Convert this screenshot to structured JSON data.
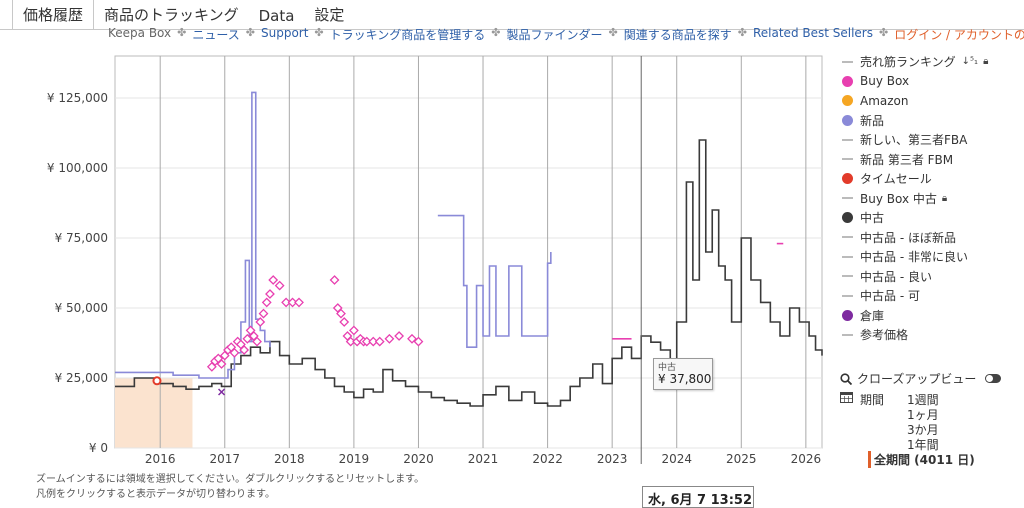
{
  "tabs": [
    {
      "label": "価格履歴",
      "active": true
    },
    {
      "label": "商品のトラッキング",
      "active": false
    },
    {
      "label": "Data",
      "active": false
    },
    {
      "label": "設定",
      "active": false
    }
  ],
  "subnav": {
    "items": [
      "Keepa Box",
      "ニュース",
      "Support",
      "トラッキング商品を管理する",
      "製品ファインダー",
      "関連する商品を探す",
      "Related Best Sellers",
      "ログイン / アカウントの登録"
    ],
    "separator": "✤"
  },
  "legend": [
    {
      "label": "売れ筋ランキング",
      "color": "#bbbbbb",
      "style": "line",
      "lock": true,
      "sort": true
    },
    {
      "label": "Buy Box",
      "color": "#e83fb0",
      "style": "dot"
    },
    {
      "label": "Amazon",
      "color": "#f5a623",
      "style": "dot"
    },
    {
      "label": "新品",
      "color": "#8a8ad8",
      "style": "dot"
    },
    {
      "label": "新しい、第三者FBA",
      "color": "#bbbbbb",
      "style": "line"
    },
    {
      "label": "新品 第三者 FBM",
      "color": "#bbbbbb",
      "style": "line"
    },
    {
      "label": "タイムセール",
      "color": "#e23b2a",
      "style": "dot"
    },
    {
      "label": "Buy Box 中古",
      "color": "#bbbbbb",
      "style": "line",
      "lock": true
    },
    {
      "label": "中古",
      "color": "#3a3a3a",
      "style": "dot"
    },
    {
      "label": "中古品 - ほぼ新品",
      "color": "#bbbbbb",
      "style": "line"
    },
    {
      "label": "中古品 - 非常に良い",
      "color": "#bbbbbb",
      "style": "line"
    },
    {
      "label": "中古品 - 良い",
      "color": "#bbbbbb",
      "style": "line"
    },
    {
      "label": "中古品 - 可",
      "color": "#bbbbbb",
      "style": "line"
    },
    {
      "label": "倉庫",
      "color": "#7e2aa0",
      "style": "dot"
    },
    {
      "label": "参考価格",
      "color": "#bbbbbb",
      "style": "line"
    }
  ],
  "closeup": {
    "label": "クローズアップビュー"
  },
  "period": {
    "label": "期間",
    "ranges": [
      "1週間",
      "1ヶ月",
      "3か月",
      "1年間",
      "全期間 (4011 日)"
    ],
    "selected": 4
  },
  "notes": [
    "ズームインするには領域を選択してください。ダブルクリックするとリセットします。",
    "凡例をクリックすると表示データが切り替わります。"
  ],
  "tooltip": {
    "series": "中古",
    "value": "¥ 37,800"
  },
  "hover_date": "水, 6月 7 13:52",
  "chart_data": {
    "type": "line",
    "y_ticks": [
      "¥ 0",
      "¥ 25,000",
      "¥ 50,000",
      "¥ 75,000",
      "¥ 100,000",
      "¥ 125,000"
    ],
    "y_tick_values": [
      0,
      25000,
      50000,
      75000,
      100000,
      125000
    ],
    "ylim": [
      0,
      140000
    ],
    "x_ticks": [
      "2016",
      "2017",
      "2018",
      "2019",
      "2020",
      "2021",
      "2022",
      "2023",
      "2024",
      "2025",
      "2026"
    ],
    "x_tick_values": [
      2016.0,
      2017.0,
      2018.0,
      2019.0,
      2020.0,
      2021.0,
      2022.0,
      2023.0,
      2024.0,
      2025.0,
      2026.0
    ],
    "xlim": [
      2015.3,
      2026.25
    ],
    "grid": true,
    "series": [
      {
        "name": "中古",
        "color": "#3a3a3a",
        "x": [
          2015.3,
          2015.6,
          2015.9,
          2016.0,
          2016.2,
          2016.4,
          2016.6,
          2016.8,
          2016.95,
          2017.1,
          2017.25,
          2017.4,
          2017.55,
          2017.7,
          2017.85,
          2018.0,
          2018.2,
          2018.4,
          2018.55,
          2018.7,
          2018.85,
          2019.0,
          2019.15,
          2019.3,
          2019.45,
          2019.6,
          2019.8,
          2020.0,
          2020.2,
          2020.4,
          2020.6,
          2020.8,
          2021.0,
          2021.2,
          2021.4,
          2021.6,
          2021.8,
          2022.0,
          2022.2,
          2022.35,
          2022.5,
          2022.7,
          2022.85,
          2023.0,
          2023.15,
          2023.3,
          2023.45,
          2023.6,
          2023.75,
          2023.9,
          2024.0,
          2024.15,
          2024.25,
          2024.35,
          2024.45,
          2024.55,
          2024.65,
          2024.75,
          2024.85,
          2025.0,
          2025.15,
          2025.3,
          2025.45,
          2025.6,
          2025.75,
          2025.9,
          2026.05,
          2026.15,
          2026.25
        ],
        "y": [
          22000,
          25000,
          24000,
          23000,
          22000,
          21000,
          22000,
          23000,
          22000,
          30000,
          33000,
          36000,
          34000,
          38000,
          33000,
          30000,
          32000,
          28000,
          25000,
          22000,
          20000,
          18000,
          21000,
          20000,
          28000,
          24000,
          22000,
          20000,
          18000,
          17000,
          16000,
          15000,
          19000,
          22000,
          17000,
          20000,
          16000,
          15000,
          17000,
          22000,
          25000,
          30000,
          23000,
          32000,
          36000,
          32000,
          40000,
          37800,
          35000,
          30000,
          45000,
          95000,
          60000,
          110000,
          70000,
          85000,
          65000,
          60000,
          45000,
          75000,
          60000,
          52000,
          45000,
          40000,
          50000,
          45000,
          40000,
          35000,
          33000
        ]
      },
      {
        "name": "新品",
        "color": "#8a8ad8",
        "x": [
          2015.3,
          2015.8,
          2016.2,
          2016.6,
          2016.9,
          2017.05,
          2017.15,
          2017.25,
          2017.32,
          2017.38,
          2017.42,
          2017.48,
          2017.55,
          2017.62,
          2017.7
        ],
        "y": [
          27000,
          27000,
          26000,
          25000,
          25000,
          28000,
          34000,
          45000,
          67000,
          38000,
          127000,
          46000,
          42000,
          38000,
          36000
        ]
      },
      {
        "name": "新品",
        "color": "#8a8ad8",
        "x": [
          2020.3,
          2020.7,
          2020.7,
          2020.75,
          2020.75,
          2020.9,
          2020.9,
          2021.0,
          2021.0,
          2021.1,
          2021.1,
          2021.2,
          2021.2,
          2021.4,
          2021.4,
          2021.6,
          2021.6,
          2022.0,
          2022.05
        ],
        "y": [
          83000,
          83000,
          58000,
          58000,
          36000,
          36000,
          58000,
          58000,
          40000,
          40000,
          65000,
          65000,
          40000,
          40000,
          65000,
          65000,
          40000,
          66000,
          70000
        ]
      },
      {
        "name": "Buy Box",
        "color": "#e83fb0",
        "marker": "diamond",
        "x": [
          2016.8,
          2016.85,
          2016.9,
          2016.95,
          2017.0,
          2017.05,
          2017.1,
          2017.15,
          2017.2,
          2017.25,
          2017.3,
          2017.35,
          2017.4,
          2017.45,
          2017.5,
          2017.55,
          2017.6,
          2017.65,
          2017.7,
          2017.75,
          2017.85,
          2017.95,
          2018.05,
          2018.15,
          2018.7,
          2018.75,
          2018.8,
          2018.85,
          2018.9,
          2018.95,
          2019.0,
          2019.05,
          2019.1,
          2019.15,
          2019.2,
          2019.3,
          2019.4,
          2019.55,
          2019.7,
          2019.9,
          2020.0
        ],
        "y": [
          29000,
          31000,
          32000,
          30000,
          33000,
          35000,
          36000,
          34000,
          38000,
          37000,
          35000,
          39000,
          42000,
          40000,
          38000,
          45000,
          48000,
          52000,
          55000,
          60000,
          58000,
          52000,
          52000,
          52000,
          60000,
          50000,
          48000,
          45000,
          40000,
          38000,
          42000,
          38000,
          39000,
          38000,
          38000,
          38000,
          38000,
          39000,
          40000,
          39000,
          38000
        ]
      },
      {
        "name": "Buy Box",
        "color": "#e83fb0",
        "x": [
          2023.0,
          2023.15,
          2023.25,
          2023.3
        ],
        "y": [
          39000,
          39000,
          39000,
          39000
        ]
      },
      {
        "name": "Buy Box",
        "color": "#e83fb0",
        "x": [
          2025.55,
          2025.65
        ],
        "y": [
          73000,
          73000
        ]
      },
      {
        "name": "タイムセール",
        "color": "#e23b2a",
        "marker": "circle",
        "x": [
          2015.95
        ],
        "y": [
          24000
        ]
      },
      {
        "name": "倉庫",
        "color": "#7e2aa0",
        "marker": "x",
        "x": [
          2016.95
        ],
        "y": [
          20000
        ]
      }
    ],
    "sales_rank_shading": {
      "x": [
        2015.3,
        2016.5
      ],
      "color": "#fbe3cf"
    }
  }
}
